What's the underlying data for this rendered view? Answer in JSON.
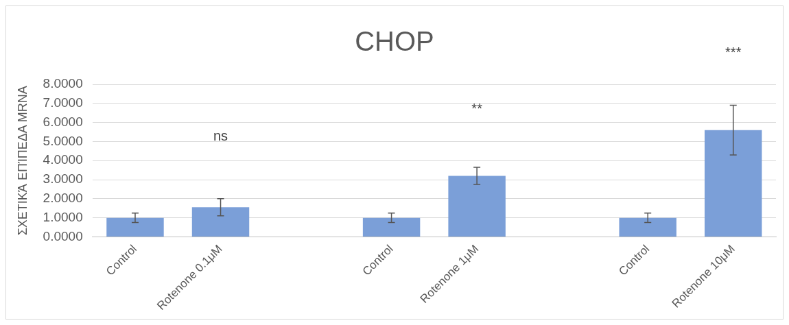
{
  "chart_data": {
    "type": "bar",
    "title": "CHOP",
    "ylabel": "ΣΧΕΤΙΚΆ ΕΠΊΠΕΔΑ MRNA",
    "categories": [
      "Control",
      "Rotenone 0.1μM",
      null,
      "Control",
      "Rotenone 1μM",
      null,
      "Control",
      "Rotenone 10μM"
    ],
    "values": [
      1.0,
      1.55,
      null,
      1.0,
      3.2,
      null,
      1.0,
      5.6
    ],
    "errors": [
      0.25,
      0.45,
      null,
      0.25,
      0.45,
      null,
      0.25,
      1.3
    ],
    "color": "#7b9fd8",
    "ylim": [
      0,
      8
    ],
    "yticks": [
      {
        "value": 0,
        "label": "0.0000"
      },
      {
        "value": 1,
        "label": "1.0000"
      },
      {
        "value": 2,
        "label": "2.0000"
      },
      {
        "value": 3,
        "label": "3.0000"
      },
      {
        "value": 4,
        "label": "4.0000"
      },
      {
        "value": 5,
        "label": "5.0000"
      },
      {
        "value": 6,
        "label": "6.0000"
      },
      {
        "value": 7,
        "label": "7.0000"
      },
      {
        "value": 8,
        "label": "8.0000"
      }
    ],
    "grid": "y",
    "legend": false,
    "annotations": [
      "ns",
      "**",
      "***"
    ]
  }
}
